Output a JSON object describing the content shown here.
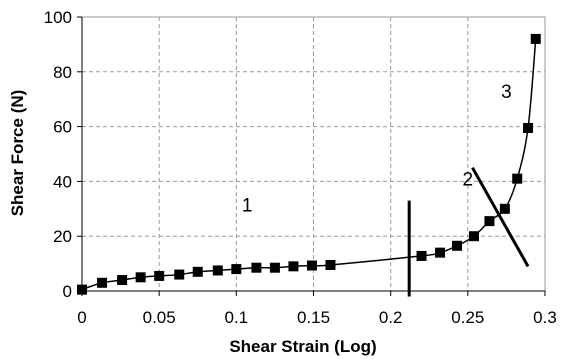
{
  "chart_data": {
    "type": "scatter",
    "title": "",
    "xlabel": "Shear Strain (Log)",
    "ylabel": "Shear Force (N)",
    "xlim": [
      0,
      0.3
    ],
    "ylim": [
      0,
      100
    ],
    "grid": true,
    "xticks": [
      0,
      0.05,
      0.1,
      0.15,
      0.2,
      0.25,
      0.3
    ],
    "xtick_labels": [
      "0",
      "0.05",
      "0.1",
      "0.15",
      "0.2",
      "0.25",
      "0.3"
    ],
    "yticks": [
      0,
      20,
      40,
      60,
      80,
      100
    ],
    "ytick_labels": [
      "0",
      "20",
      "40",
      "60",
      "80",
      "100"
    ],
    "series": [
      {
        "marker": "square",
        "line": "smooth",
        "color": "#000000",
        "x": [
          0,
          0.013,
          0.026,
          0.038,
          0.05,
          0.063,
          0.075,
          0.088,
          0.1,
          0.113,
          0.125,
          0.137,
          0.149,
          0.161,
          0.22,
          0.232,
          0.243,
          0.254,
          0.264,
          0.274,
          0.282,
          0.289,
          0.294
        ],
        "y": [
          0.5,
          3,
          4,
          5,
          5.5,
          6,
          7,
          7.5,
          8,
          8.5,
          8.5,
          9,
          9.3,
          9.5,
          12.8,
          14,
          16.5,
          20,
          25.5,
          30,
          41,
          59.5,
          92
        ]
      }
    ],
    "dividers": [
      {
        "x1": 0.212,
        "y1": 33,
        "x2": 0.212,
        "y2": -2
      },
      {
        "x1": 0.253,
        "y1": 45,
        "x2": 0.289,
        "y2": 9
      }
    ],
    "annotations": [
      {
        "text": "1",
        "x": 0.107,
        "y": 29
      },
      {
        "text": "2",
        "x": 0.25,
        "y": 38.5
      },
      {
        "text": "3",
        "x": 0.275,
        "y": 70.5
      }
    ]
  }
}
